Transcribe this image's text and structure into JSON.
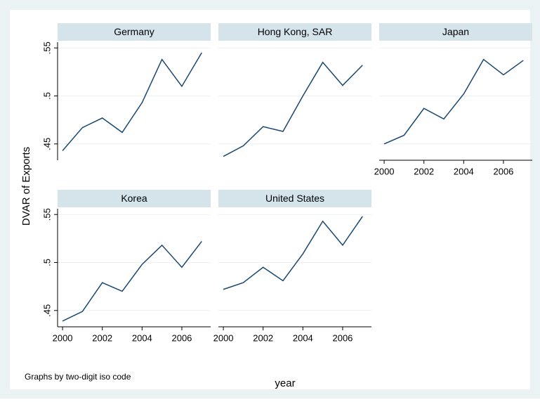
{
  "y_label": "DVAR of Exports",
  "x_label": "year",
  "note": "Graphs by two-digit iso code",
  "chart_data": [
    {
      "type": "line",
      "title": "Germany",
      "x": [
        2000,
        2001,
        2002,
        2003,
        2004,
        2005,
        2006,
        2007
      ],
      "values": [
        0.443,
        0.467,
        0.477,
        0.462,
        0.493,
        0.538,
        0.51,
        0.545
      ],
      "color": "#1a476f",
      "xlim": [
        1999.75,
        2007.45
      ],
      "xticks": [
        2000,
        2002,
        2004,
        2006
      ],
      "ylim": [
        0.433,
        0.556
      ],
      "yticks": [
        {
          "value": 0.45,
          "label": ".45"
        },
        {
          "value": 0.5,
          "label": ".5"
        },
        {
          "value": 0.55,
          "label": ".55"
        }
      ],
      "grid": true
    },
    {
      "type": "line",
      "title": "Hong Kong, SAR",
      "x": [
        2000,
        2001,
        2002,
        2003,
        2004,
        2005,
        2006,
        2007
      ],
      "values": [
        0.437,
        0.448,
        0.468,
        0.463,
        0.5,
        0.535,
        0.511,
        0.532
      ],
      "color": "#1a476f",
      "xlim": [
        1999.75,
        2007.45
      ],
      "xticks": [
        2000,
        2002,
        2004,
        2006
      ],
      "ylim": [
        0.433,
        0.556
      ],
      "yticks": [
        {
          "value": 0.45,
          "label": ".45"
        },
        {
          "value": 0.5,
          "label": ".5"
        },
        {
          "value": 0.55,
          "label": ".55"
        }
      ],
      "grid": true
    },
    {
      "type": "line",
      "title": "Japan",
      "x": [
        2000,
        2001,
        2002,
        2003,
        2004,
        2005,
        2006,
        2007
      ],
      "values": [
        0.45,
        0.459,
        0.487,
        0.476,
        0.502,
        0.538,
        0.522,
        0.537
      ],
      "color": "#1a476f",
      "xlim": [
        1999.75,
        2007.45
      ],
      "xticks": [
        2000,
        2002,
        2004,
        2006
      ],
      "ylim": [
        0.433,
        0.556
      ],
      "yticks": [
        {
          "value": 0.45,
          "label": ".45"
        },
        {
          "value": 0.5,
          "label": ".5"
        },
        {
          "value": 0.55,
          "label": ".55"
        }
      ],
      "grid": true
    },
    {
      "type": "line",
      "title": "Korea",
      "x": [
        2000,
        2001,
        2002,
        2003,
        2004,
        2005,
        2006,
        2007
      ],
      "values": [
        0.439,
        0.449,
        0.479,
        0.47,
        0.498,
        0.518,
        0.495,
        0.522
      ],
      "color": "#1a476f",
      "xlim": [
        1999.75,
        2007.45
      ],
      "xticks": [
        2000,
        2002,
        2004,
        2006
      ],
      "ylim": [
        0.433,
        0.556
      ],
      "yticks": [
        {
          "value": 0.45,
          "label": ".45"
        },
        {
          "value": 0.5,
          "label": ".5"
        },
        {
          "value": 0.55,
          "label": ".55"
        }
      ],
      "grid": true
    },
    {
      "type": "line",
      "title": "United States",
      "x": [
        2000,
        2001,
        2002,
        2003,
        2004,
        2005,
        2006,
        2007
      ],
      "values": [
        0.472,
        0.479,
        0.495,
        0.481,
        0.509,
        0.543,
        0.518,
        0.548
      ],
      "color": "#1a476f",
      "xlim": [
        1999.75,
        2007.45
      ],
      "xticks": [
        2000,
        2002,
        2004,
        2006
      ],
      "ylim": [
        0.433,
        0.556
      ],
      "yticks": [
        {
          "value": 0.45,
          "label": ".45"
        },
        {
          "value": 0.5,
          "label": ".5"
        },
        {
          "value": 0.55,
          "label": ".55"
        }
      ],
      "grid": true
    }
  ]
}
